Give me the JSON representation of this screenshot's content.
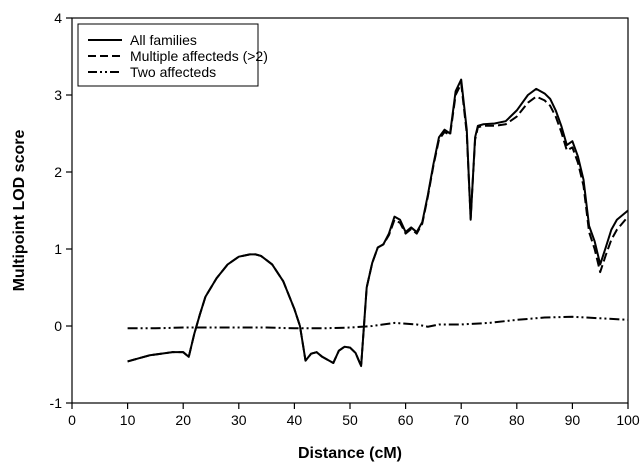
{
  "chart_data": {
    "type": "line",
    "xlabel": "Distance (cM)",
    "ylabel": "Multipoint LOD score",
    "xlim": [
      0,
      100
    ],
    "ylim": [
      -1,
      4
    ],
    "x_ticks": [
      0,
      10,
      20,
      30,
      40,
      50,
      60,
      70,
      80,
      90,
      100
    ],
    "y_ticks": [
      -1,
      0,
      1,
      2,
      3,
      4
    ],
    "grid": false,
    "legend_position": "top-left",
    "series": [
      {
        "name": "All families",
        "line_style": "solid",
        "color": "#000000",
        "points": [
          [
            10,
            -0.46
          ],
          [
            12,
            -0.42
          ],
          [
            14,
            -0.38
          ],
          [
            16,
            -0.36
          ],
          [
            18,
            -0.34
          ],
          [
            20,
            -0.34
          ],
          [
            21,
            -0.4
          ],
          [
            22,
            -0.1
          ],
          [
            23,
            0.15
          ],
          [
            24,
            0.38
          ],
          [
            26,
            0.62
          ],
          [
            28,
            0.8
          ],
          [
            30,
            0.9
          ],
          [
            32,
            0.93
          ],
          [
            33,
            0.93
          ],
          [
            34,
            0.91
          ],
          [
            36,
            0.8
          ],
          [
            38,
            0.58
          ],
          [
            40,
            0.22
          ],
          [
            41,
            0.0
          ],
          [
            42,
            -0.45
          ],
          [
            43,
            -0.36
          ],
          [
            44,
            -0.34
          ],
          [
            45,
            -0.4
          ],
          [
            46,
            -0.44
          ],
          [
            47,
            -0.48
          ],
          [
            48,
            -0.32
          ],
          [
            49,
            -0.27
          ],
          [
            50,
            -0.28
          ],
          [
            51,
            -0.35
          ],
          [
            52,
            -0.52
          ],
          [
            53,
            0.5
          ],
          [
            54,
            0.82
          ],
          [
            55,
            1.02
          ],
          [
            56,
            1.06
          ],
          [
            57,
            1.2
          ],
          [
            58,
            1.42
          ],
          [
            59,
            1.38
          ],
          [
            60,
            1.22
          ],
          [
            61,
            1.28
          ],
          [
            62,
            1.22
          ],
          [
            63,
            1.35
          ],
          [
            64,
            1.7
          ],
          [
            65,
            2.1
          ],
          [
            66,
            2.45
          ],
          [
            67,
            2.55
          ],
          [
            68,
            2.5
          ],
          [
            69,
            3.05
          ],
          [
            70,
            3.2
          ],
          [
            71,
            2.55
          ],
          [
            71.7,
            1.38
          ],
          [
            72.5,
            2.45
          ],
          [
            73,
            2.6
          ],
          [
            74,
            2.62
          ],
          [
            76,
            2.63
          ],
          [
            78,
            2.66
          ],
          [
            80,
            2.8
          ],
          [
            82,
            3.0
          ],
          [
            83.5,
            3.08
          ],
          [
            85,
            3.02
          ],
          [
            86,
            2.95
          ],
          [
            87,
            2.8
          ],
          [
            88,
            2.6
          ],
          [
            89,
            2.35
          ],
          [
            90,
            2.4
          ],
          [
            91,
            2.2
          ],
          [
            92,
            1.9
          ],
          [
            93,
            1.3
          ],
          [
            94,
            1.1
          ],
          [
            95,
            0.8
          ],
          [
            96,
            1.02
          ],
          [
            97,
            1.25
          ],
          [
            98,
            1.38
          ],
          [
            100,
            1.5
          ]
        ]
      },
      {
        "name": "Multiple affecteds (>2)",
        "line_style": "dashed",
        "color": "#000000",
        "points": [
          [
            10,
            -0.46
          ],
          [
            12,
            -0.42
          ],
          [
            14,
            -0.38
          ],
          [
            16,
            -0.36
          ],
          [
            18,
            -0.34
          ],
          [
            20,
            -0.34
          ],
          [
            21,
            -0.4
          ],
          [
            22,
            -0.1
          ],
          [
            23,
            0.15
          ],
          [
            24,
            0.38
          ],
          [
            26,
            0.62
          ],
          [
            28,
            0.8
          ],
          [
            30,
            0.9
          ],
          [
            32,
            0.93
          ],
          [
            33,
            0.93
          ],
          [
            34,
            0.91
          ],
          [
            36,
            0.8
          ],
          [
            38,
            0.58
          ],
          [
            40,
            0.22
          ],
          [
            41,
            0.0
          ],
          [
            42,
            -0.45
          ],
          [
            43,
            -0.36
          ],
          [
            44,
            -0.34
          ],
          [
            45,
            -0.4
          ],
          [
            46,
            -0.44
          ],
          [
            47,
            -0.48
          ],
          [
            48,
            -0.32
          ],
          [
            49,
            -0.27
          ],
          [
            50,
            -0.28
          ],
          [
            51,
            -0.35
          ],
          [
            52,
            -0.52
          ],
          [
            53,
            0.5
          ],
          [
            54,
            0.82
          ],
          [
            55,
            1.02
          ],
          [
            56,
            1.06
          ],
          [
            57,
            1.18
          ],
          [
            58,
            1.38
          ],
          [
            59,
            1.34
          ],
          [
            60,
            1.2
          ],
          [
            61,
            1.26
          ],
          [
            62,
            1.2
          ],
          [
            63,
            1.33
          ],
          [
            64,
            1.68
          ],
          [
            65,
            2.08
          ],
          [
            66,
            2.42
          ],
          [
            67,
            2.52
          ],
          [
            68,
            2.48
          ],
          [
            69,
            3.0
          ],
          [
            70,
            3.15
          ],
          [
            71,
            2.5
          ],
          [
            71.7,
            1.4
          ],
          [
            72.5,
            2.42
          ],
          [
            73,
            2.58
          ],
          [
            74,
            2.6
          ],
          [
            76,
            2.6
          ],
          [
            78,
            2.62
          ],
          [
            80,
            2.72
          ],
          [
            82,
            2.9
          ],
          [
            83.5,
            2.98
          ],
          [
            85,
            2.93
          ],
          [
            86,
            2.86
          ],
          [
            87,
            2.72
          ],
          [
            88,
            2.52
          ],
          [
            89,
            2.28
          ],
          [
            90,
            2.32
          ],
          [
            91,
            2.12
          ],
          [
            92,
            1.82
          ],
          [
            93,
            1.22
          ],
          [
            94,
            1.0
          ],
          [
            95,
            0.7
          ],
          [
            96,
            0.92
          ],
          [
            97,
            1.12
          ],
          [
            98,
            1.25
          ],
          [
            100,
            1.42
          ]
        ]
      },
      {
        "name": "Two affecteds",
        "line_style": "dash-dot-dot",
        "color": "#000000",
        "points": [
          [
            10,
            -0.03
          ],
          [
            15,
            -0.03
          ],
          [
            20,
            -0.02
          ],
          [
            25,
            -0.02
          ],
          [
            30,
            -0.02
          ],
          [
            35,
            -0.02
          ],
          [
            40,
            -0.03
          ],
          [
            45,
            -0.03
          ],
          [
            50,
            -0.02
          ],
          [
            54,
            0.0
          ],
          [
            58,
            0.04
          ],
          [
            62,
            0.02
          ],
          [
            64,
            -0.01
          ],
          [
            66,
            0.02
          ],
          [
            70,
            0.02
          ],
          [
            75,
            0.04
          ],
          [
            80,
            0.08
          ],
          [
            85,
            0.11
          ],
          [
            90,
            0.12
          ],
          [
            95,
            0.1
          ],
          [
            100,
            0.08
          ]
        ]
      }
    ]
  }
}
